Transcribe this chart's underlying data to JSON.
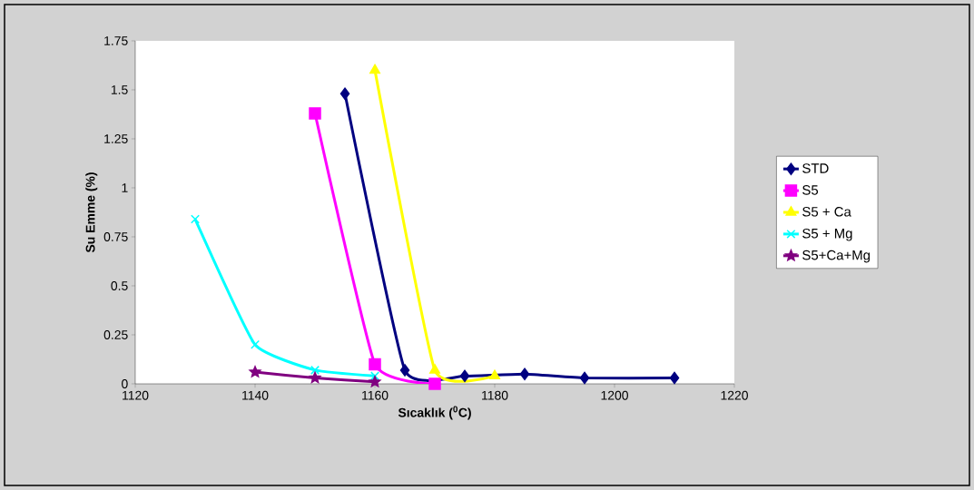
{
  "chart_data": {
    "type": "line",
    "xlabel": "Sıcaklık ($^{0}$C)",
    "ylabel": "Su Emme (%)",
    "xlim": [
      1120,
      1220
    ],
    "xticks": [
      1120,
      1140,
      1160,
      1180,
      1200,
      1220
    ],
    "ylim": [
      0,
      1.75
    ],
    "yticks": [
      0,
      0.25,
      0.5,
      0.75,
      1,
      1.25,
      1.5,
      1.75
    ],
    "grid": false,
    "legend": "right",
    "series": [
      {
        "name": "STD",
        "color": "#000080",
        "marker": "diamond",
        "x": [
          1155,
          1165,
          1175,
          1185,
          1195,
          1210
        ],
        "values": [
          1.48,
          0.07,
          0.04,
          0.05,
          0.03,
          0.03
        ]
      },
      {
        "name": "S5",
        "color": "#ff00ff",
        "marker": "square",
        "x": [
          1150,
          1160,
          1170
        ],
        "values": [
          1.38,
          0.1,
          0
        ]
      },
      {
        "name": "S5 + Ca",
        "color": "#ffff00",
        "marker": "triangle",
        "x": [
          1160,
          1170,
          1180
        ],
        "values": [
          1.6,
          0.07,
          0.04
        ]
      },
      {
        "name": "S5 + Mg",
        "color": "#00ffff",
        "marker": "cross",
        "x": [
          1130,
          1140,
          1150,
          1160
        ],
        "values": [
          0.84,
          0.2,
          0.07,
          0.04
        ]
      },
      {
        "name": "S5+Ca+Mg",
        "color": "#800080",
        "marker": "star",
        "x": [
          1140,
          1150,
          1160
        ],
        "values": [
          0.06,
          0.03,
          0.01
        ]
      }
    ]
  }
}
